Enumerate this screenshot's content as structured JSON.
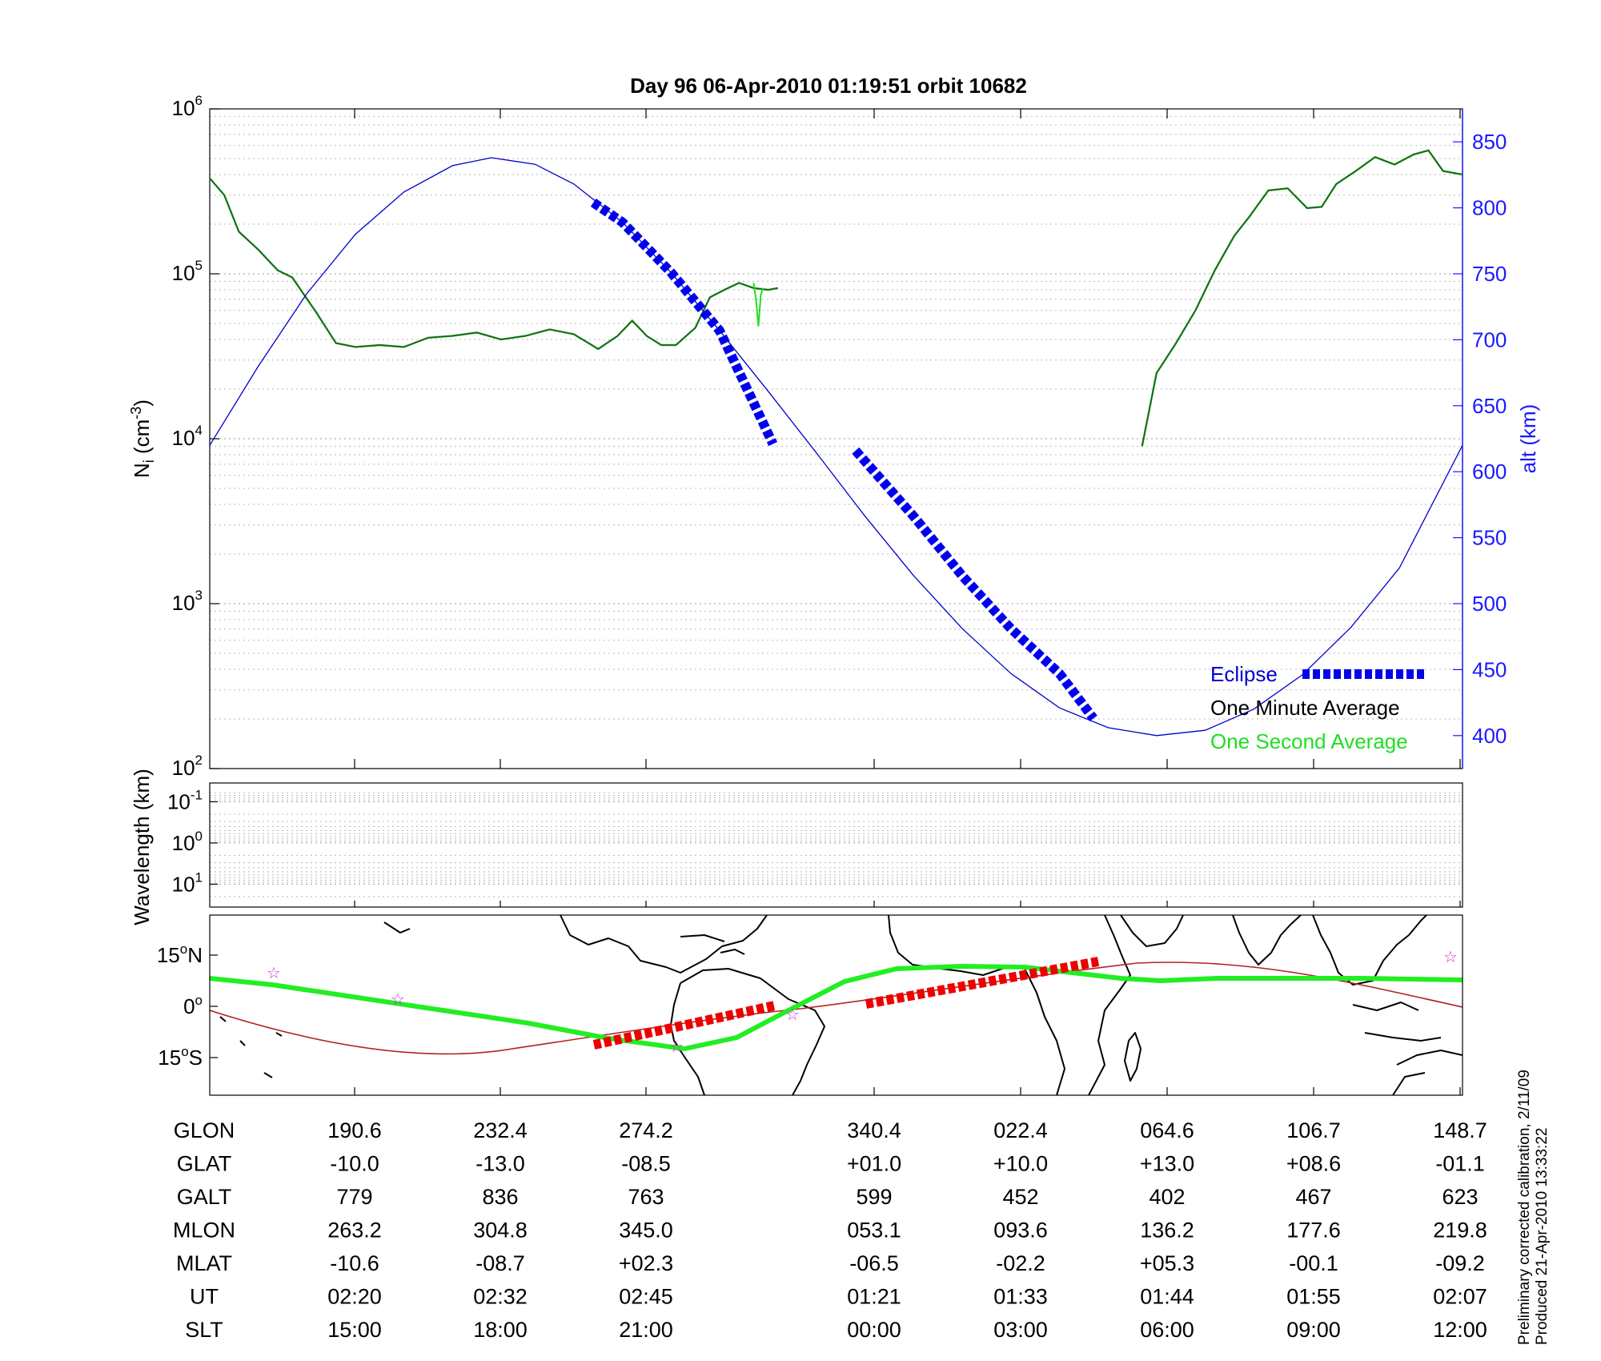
{
  "title": "Day 96  06-Apr-2010 01:19:51   orbit 10682",
  "top_panel": {
    "y_label_main": "N",
    "y_label_sub": "i",
    "y_label_unit": " (cm",
    "y_label_exp": "-3",
    "y_label_close": ")",
    "y_tick_labels": [
      {
        "base": "10",
        "exp": "6"
      },
      {
        "base": "10",
        "exp": "5"
      },
      {
        "base": "10",
        "exp": "4"
      },
      {
        "base": "10",
        "exp": "3"
      },
      {
        "base": "10",
        "exp": "2"
      }
    ],
    "right_label": "alt (km)",
    "right_tick_labels": [
      "850",
      "800",
      "750",
      "700",
      "650",
      "600",
      "550",
      "500",
      "450",
      "400"
    ]
  },
  "legend": {
    "eclipse": "Eclipse",
    "one_minute": "One Minute Average",
    "one_second": "One Second Average"
  },
  "middle_panel": {
    "y_label": "Wavelength (km)",
    "y_tick_labels": [
      {
        "base": "10",
        "exp": "-1"
      },
      {
        "base": "10",
        "exp": "0"
      },
      {
        "base": "10",
        "exp": "1"
      }
    ]
  },
  "map_panel": {
    "y_tick_labels": [
      {
        "num": "15",
        "deg": "o",
        "hem": "N"
      },
      {
        "num": "0",
        "deg": "o",
        "hem": ""
      },
      {
        "num": "15",
        "deg": "o",
        "hem": "S"
      }
    ]
  },
  "table": {
    "rows": [
      {
        "label": "GLON",
        "values": [
          "190.6",
          "232.4",
          "274.2",
          "340.4",
          "022.4",
          "064.6",
          "106.7",
          "148.7"
        ]
      },
      {
        "label": "GLAT",
        "values": [
          "-10.0",
          "-13.0",
          "-08.5",
          "+01.0",
          "+10.0",
          "+13.0",
          "+08.6",
          "-01.1"
        ]
      },
      {
        "label": "GALT",
        "values": [
          "779",
          "836",
          "763",
          "599",
          "452",
          "402",
          "467",
          "623"
        ]
      },
      {
        "label": "MLON",
        "values": [
          "263.2",
          "304.8",
          "345.0",
          "053.1",
          "093.6",
          "136.2",
          "177.6",
          "219.8"
        ]
      },
      {
        "label": "MLAT",
        "values": [
          "-10.6",
          "-08.7",
          "+02.3",
          "-06.5",
          "-02.2",
          "+05.3",
          "-00.1",
          "-09.2"
        ]
      },
      {
        "label": "UT",
        "values": [
          "02:20",
          "02:32",
          "02:45",
          "01:21",
          "01:33",
          "01:44",
          "01:55",
          "02:07"
        ]
      },
      {
        "label": "SLT",
        "values": [
          "15:00",
          "18:00",
          "21:00",
          "00:00",
          "03:00",
          "06:00",
          "09:00",
          "12:00"
        ]
      }
    ]
  },
  "side_note": [
    "Preliminary corrected calibration, 2/11/09",
    "Produced 21-Apr-2010 13:33:22"
  ],
  "colors": {
    "altitude": "#0000cc",
    "eclipse": "#0000ee",
    "one_minute": "#1f5c1f",
    "one_second": "#22dd22",
    "map_track": "#22ee22",
    "map_eclipse": "#ee0000",
    "dip_equator": "#b22222",
    "star_marker": "#cc33cc",
    "axis_right": "#1a1aff"
  },
  "chart_data": {
    "type": "line",
    "x_ticks": {
      "SLT": [
        "15:00",
        "18:00",
        "21:00",
        "00:00",
        "03:00",
        "06:00",
        "09:00",
        "12:00"
      ],
      "UT": [
        "02:20",
        "02:32",
        "02:45",
        "01:21",
        "01:33",
        "01:44",
        "01:55",
        "02:07"
      ]
    },
    "x_units": "SLT hours from start of plot (start = 12:00)",
    "x_range": [
      0,
      25.8
    ],
    "y_left_scale": "log",
    "y_left_range": [
      100,
      1000000
    ],
    "y_right_range": [
      375,
      875
    ],
    "grid": true,
    "legend_position": "bottom-right",
    "series": [
      {
        "name": "One Minute Average",
        "axis": "left",
        "x": [
          0,
          0.3,
          0.6,
          1.0,
          1.4,
          1.7,
          2.2,
          2.6,
          3.0,
          3.5,
          4.0,
          4.5,
          5.0,
          5.5,
          6.0,
          6.5,
          7.0,
          7.5,
          8.0,
          8.4,
          8.7,
          9.0,
          9.3,
          9.6,
          10.0,
          10.3,
          10.6,
          10.9,
          11.2,
          11.5,
          11.7,
          19.2,
          19.5,
          19.9,
          20.3,
          20.7,
          21.1,
          21.4,
          21.8,
          22.2,
          22.6,
          22.9,
          23.2,
          23.6,
          24.0,
          24.4,
          24.8,
          25.1,
          25.4,
          25.8
        ],
        "y": [
          380000,
          300000,
          180000,
          140000,
          105000,
          95000,
          58000,
          38000,
          36000,
          37000,
          36000,
          41000,
          42000,
          44000,
          40000,
          42000,
          46000,
          43000,
          35000,
          42000,
          52000,
          42000,
          37000,
          37000,
          47000,
          72000,
          80000,
          88000,
          82000,
          80000,
          82000,
          9000,
          25000,
          38000,
          60000,
          105000,
          170000,
          220000,
          320000,
          330000,
          250000,
          255000,
          350000,
          420000,
          510000,
          460000,
          530000,
          560000,
          420000,
          400000
        ]
      },
      {
        "name": "One Second Average",
        "axis": "left",
        "x": [
          11.2,
          11.25,
          11.3,
          11.35,
          11.4
        ],
        "y": [
          88000,
          70000,
          48000,
          75000,
          82000
        ]
      },
      {
        "name": "altitude",
        "axis": "right",
        "x": [
          0,
          1,
          2,
          3,
          4,
          5,
          5.8,
          6.7,
          7.5,
          8.5,
          9.5,
          10.5,
          11.5,
          12.5,
          13.5,
          14.5,
          15.5,
          16.5,
          17.5,
          18.5,
          19.5,
          20.5,
          21.5,
          22.5,
          23.5,
          24.5,
          25.8
        ],
        "y": [
          620,
          680,
          735,
          780,
          812,
          832,
          838,
          833,
          818,
          789,
          751,
          707,
          661,
          614,
          566,
          521,
          481,
          447,
          421,
          406,
          400,
          404,
          420,
          446,
          482,
          527,
          620
        ]
      },
      {
        "name": "Eclipse",
        "axis": "right",
        "segments": [
          {
            "x": [
              7.9,
              8.5,
              9.5,
              10.5,
              11.6
            ],
            "y": [
              804,
              789,
              751,
              707,
              621
            ]
          },
          {
            "x": [
              13.3,
              14.5,
              15.5,
              16.5,
              17.5,
              18.2
            ],
            "y": [
              616,
              566,
              521,
              481,
              447,
              413
            ]
          }
        ]
      }
    ]
  }
}
